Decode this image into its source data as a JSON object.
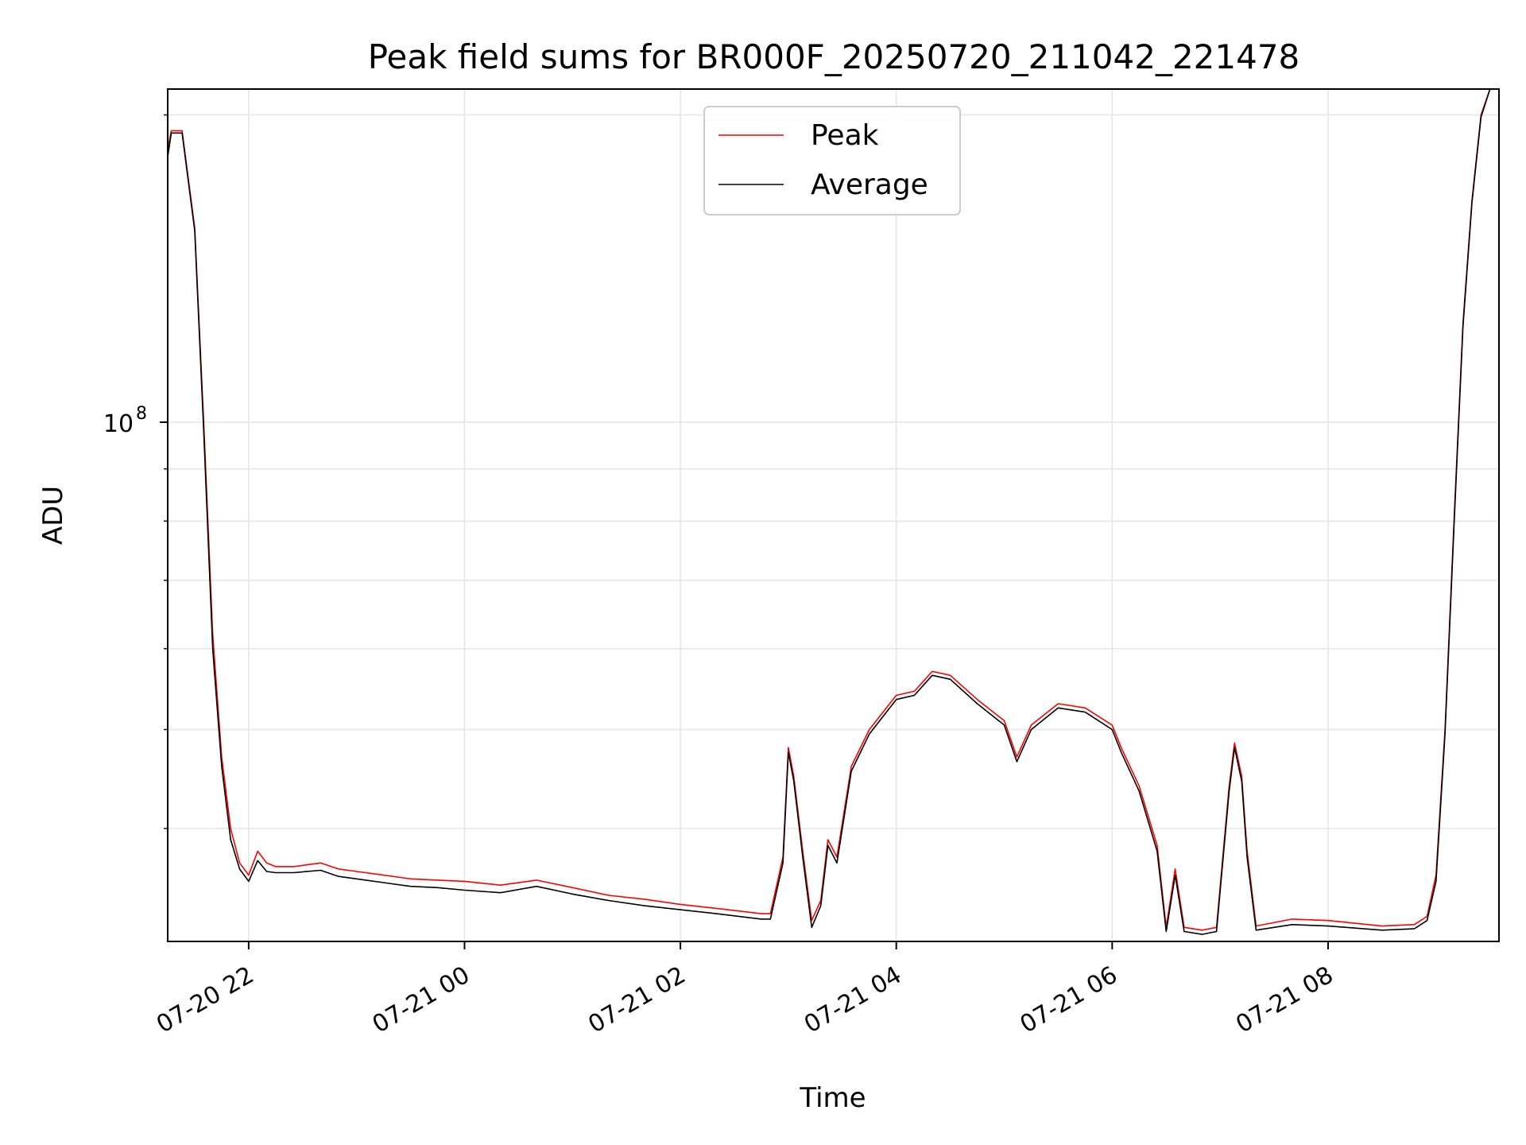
{
  "chart_data": {
    "type": "line",
    "title": "Peak field sums for BR000F_20250720_211042_221478",
    "xlabel": "Time",
    "ylabel": "ADU",
    "yscale": "log",
    "ylim": [
      31000000,
      212000000
    ],
    "xlim": [
      "2025-07-20 21:15",
      "2025-07-21 09:35"
    ],
    "x_ticks": [
      "07-20 22",
      "07-21 00",
      "07-21 02",
      "07-21 04",
      "07-21 06",
      "07-21 08"
    ],
    "y_tick_mantissa": "10",
    "y_tick_exponent": "8",
    "grid": true,
    "legend": "upper-center",
    "series": [
      {
        "name": "Peak",
        "color": "#ff0000",
        "x": [
          "2025-07-20 21:15",
          "2025-07-20 21:17",
          "2025-07-20 21:23",
          "2025-07-20 21:30",
          "2025-07-20 21:35",
          "2025-07-20 21:40",
          "2025-07-20 21:45",
          "2025-07-20 21:50",
          "2025-07-20 21:55",
          "2025-07-20 22:00",
          "2025-07-20 22:05",
          "2025-07-20 22:10",
          "2025-07-20 22:15",
          "2025-07-20 22:25",
          "2025-07-20 22:40",
          "2025-07-20 22:50",
          "2025-07-20 23:00",
          "2025-07-20 23:15",
          "2025-07-20 23:30",
          "2025-07-20 23:45",
          "2025-07-21 00:00",
          "2025-07-21 00:20",
          "2025-07-21 00:40",
          "2025-07-21 01:00",
          "2025-07-21 01:20",
          "2025-07-21 01:40",
          "2025-07-21 02:00",
          "2025-07-21 02:20",
          "2025-07-21 02:45",
          "2025-07-21 02:50",
          "2025-07-21 02:57",
          "2025-07-21 03:00",
          "2025-07-21 03:03",
          "2025-07-21 03:08",
          "2025-07-21 03:13",
          "2025-07-21 03:18",
          "2025-07-21 03:22",
          "2025-07-21 03:27",
          "2025-07-21 03:35",
          "2025-07-21 03:45",
          "2025-07-21 04:00",
          "2025-07-21 04:10",
          "2025-07-21 04:20",
          "2025-07-21 04:30",
          "2025-07-21 04:45",
          "2025-07-21 05:00",
          "2025-07-21 05:07",
          "2025-07-21 05:15",
          "2025-07-21 05:30",
          "2025-07-21 05:45",
          "2025-07-21 06:00",
          "2025-07-21 06:05",
          "2025-07-21 06:15",
          "2025-07-21 06:25",
          "2025-07-21 06:30",
          "2025-07-21 06:35",
          "2025-07-21 06:40",
          "2025-07-21 06:50",
          "2025-07-21 06:58",
          "2025-07-21 07:05",
          "2025-07-21 07:08",
          "2025-07-21 07:12",
          "2025-07-21 07:15",
          "2025-07-21 07:20",
          "2025-07-21 07:40",
          "2025-07-21 08:00",
          "2025-07-21 08:30",
          "2025-07-21 08:48",
          "2025-07-21 08:55",
          "2025-07-21 09:00",
          "2025-07-21 09:05",
          "2025-07-21 09:10",
          "2025-07-21 09:15",
          "2025-07-21 09:20",
          "2025-07-21 09:25",
          "2025-07-21 09:30",
          "2025-07-21 09:35"
        ],
        "y": [
          185000000,
          193000000,
          193000000,
          155000000,
          100000000,
          62000000,
          47000000,
          40000000,
          37000000,
          36000000,
          38000000,
          37000000,
          36700000,
          36700000,
          37000000,
          36500000,
          36300000,
          36000000,
          35700000,
          35600000,
          35500000,
          35200000,
          35600000,
          35000000,
          34400000,
          34100000,
          33700000,
          33400000,
          33000000,
          33000000,
          37500000,
          48000000,
          45000000,
          38000000,
          32500000,
          34000000,
          39000000,
          37500000,
          46000000,
          50000000,
          54000000,
          54500000,
          57000000,
          56500000,
          53500000,
          51000000,
          47000000,
          50500000,
          53000000,
          52500000,
          50500000,
          48000000,
          44000000,
          38500000,
          32000000,
          36500000,
          32000000,
          31800000,
          32000000,
          44000000,
          48500000,
          45000000,
          38000000,
          32100000,
          32600000,
          32500000,
          32100000,
          32200000,
          32800000,
          36000000,
          50000000,
          80000000,
          125000000,
          165000000,
          200000000,
          212000000,
          212000000
        ]
      },
      {
        "name": "Average",
        "color": "#000000",
        "x": [
          "2025-07-20 21:15",
          "2025-07-20 21:17",
          "2025-07-20 21:23",
          "2025-07-20 21:30",
          "2025-07-20 21:35",
          "2025-07-20 21:40",
          "2025-07-20 21:45",
          "2025-07-20 21:50",
          "2025-07-20 21:55",
          "2025-07-20 22:00",
          "2025-07-20 22:05",
          "2025-07-20 22:10",
          "2025-07-20 22:15",
          "2025-07-20 22:25",
          "2025-07-20 22:40",
          "2025-07-20 22:50",
          "2025-07-20 23:00",
          "2025-07-20 23:15",
          "2025-07-20 23:30",
          "2025-07-20 23:45",
          "2025-07-21 00:00",
          "2025-07-21 00:20",
          "2025-07-21 00:40",
          "2025-07-21 01:00",
          "2025-07-21 01:20",
          "2025-07-21 01:40",
          "2025-07-21 02:00",
          "2025-07-21 02:20",
          "2025-07-21 02:45",
          "2025-07-21 02:50",
          "2025-07-21 02:57",
          "2025-07-21 03:00",
          "2025-07-21 03:03",
          "2025-07-21 03:08",
          "2025-07-21 03:13",
          "2025-07-21 03:18",
          "2025-07-21 03:22",
          "2025-07-21 03:27",
          "2025-07-21 03:35",
          "2025-07-21 03:45",
          "2025-07-21 04:00",
          "2025-07-21 04:10",
          "2025-07-21 04:20",
          "2025-07-21 04:30",
          "2025-07-21 04:45",
          "2025-07-21 05:00",
          "2025-07-21 05:07",
          "2025-07-21 05:15",
          "2025-07-21 05:30",
          "2025-07-21 05:45",
          "2025-07-21 06:00",
          "2025-07-21 06:05",
          "2025-07-21 06:15",
          "2025-07-21 06:25",
          "2025-07-21 06:30",
          "2025-07-21 06:35",
          "2025-07-21 06:40",
          "2025-07-21 06:50",
          "2025-07-21 06:58",
          "2025-07-21 07:05",
          "2025-07-21 07:08",
          "2025-07-21 07:12",
          "2025-07-21 07:15",
          "2025-07-21 07:20",
          "2025-07-21 07:40",
          "2025-07-21 08:00",
          "2025-07-21 08:30",
          "2025-07-21 08:48",
          "2025-07-21 08:55",
          "2025-07-21 09:00",
          "2025-07-21 09:05",
          "2025-07-21 09:10",
          "2025-07-21 09:15",
          "2025-07-21 09:20",
          "2025-07-21 09:25",
          "2025-07-21 09:30",
          "2025-07-21 09:35"
        ],
        "y": [
          182000000,
          192000000,
          192000000,
          154000000,
          98000000,
          60000000,
          46000000,
          39000000,
          36500000,
          35500000,
          37200000,
          36300000,
          36200000,
          36200000,
          36400000,
          35900000,
          35700000,
          35400000,
          35100000,
          35000000,
          34800000,
          34600000,
          35100000,
          34500000,
          34000000,
          33600000,
          33300000,
          33000000,
          32600000,
          32600000,
          37000000,
          47500000,
          44500000,
          37500000,
          32000000,
          33600000,
          38500000,
          37000000,
          45500000,
          49500000,
          53500000,
          54000000,
          56500000,
          56000000,
          53000000,
          50500000,
          46500000,
          50000000,
          52500000,
          52000000,
          50000000,
          47500000,
          43500000,
          38000000,
          31700000,
          36000000,
          31700000,
          31500000,
          31700000,
          43500000,
          48000000,
          44500000,
          37500000,
          31800000,
          32200000,
          32100000,
          31800000,
          31900000,
          32500000,
          35500000,
          49500000,
          79000000,
          124000000,
          164000000,
          199000000,
          212000000,
          212000000
        ]
      }
    ]
  }
}
